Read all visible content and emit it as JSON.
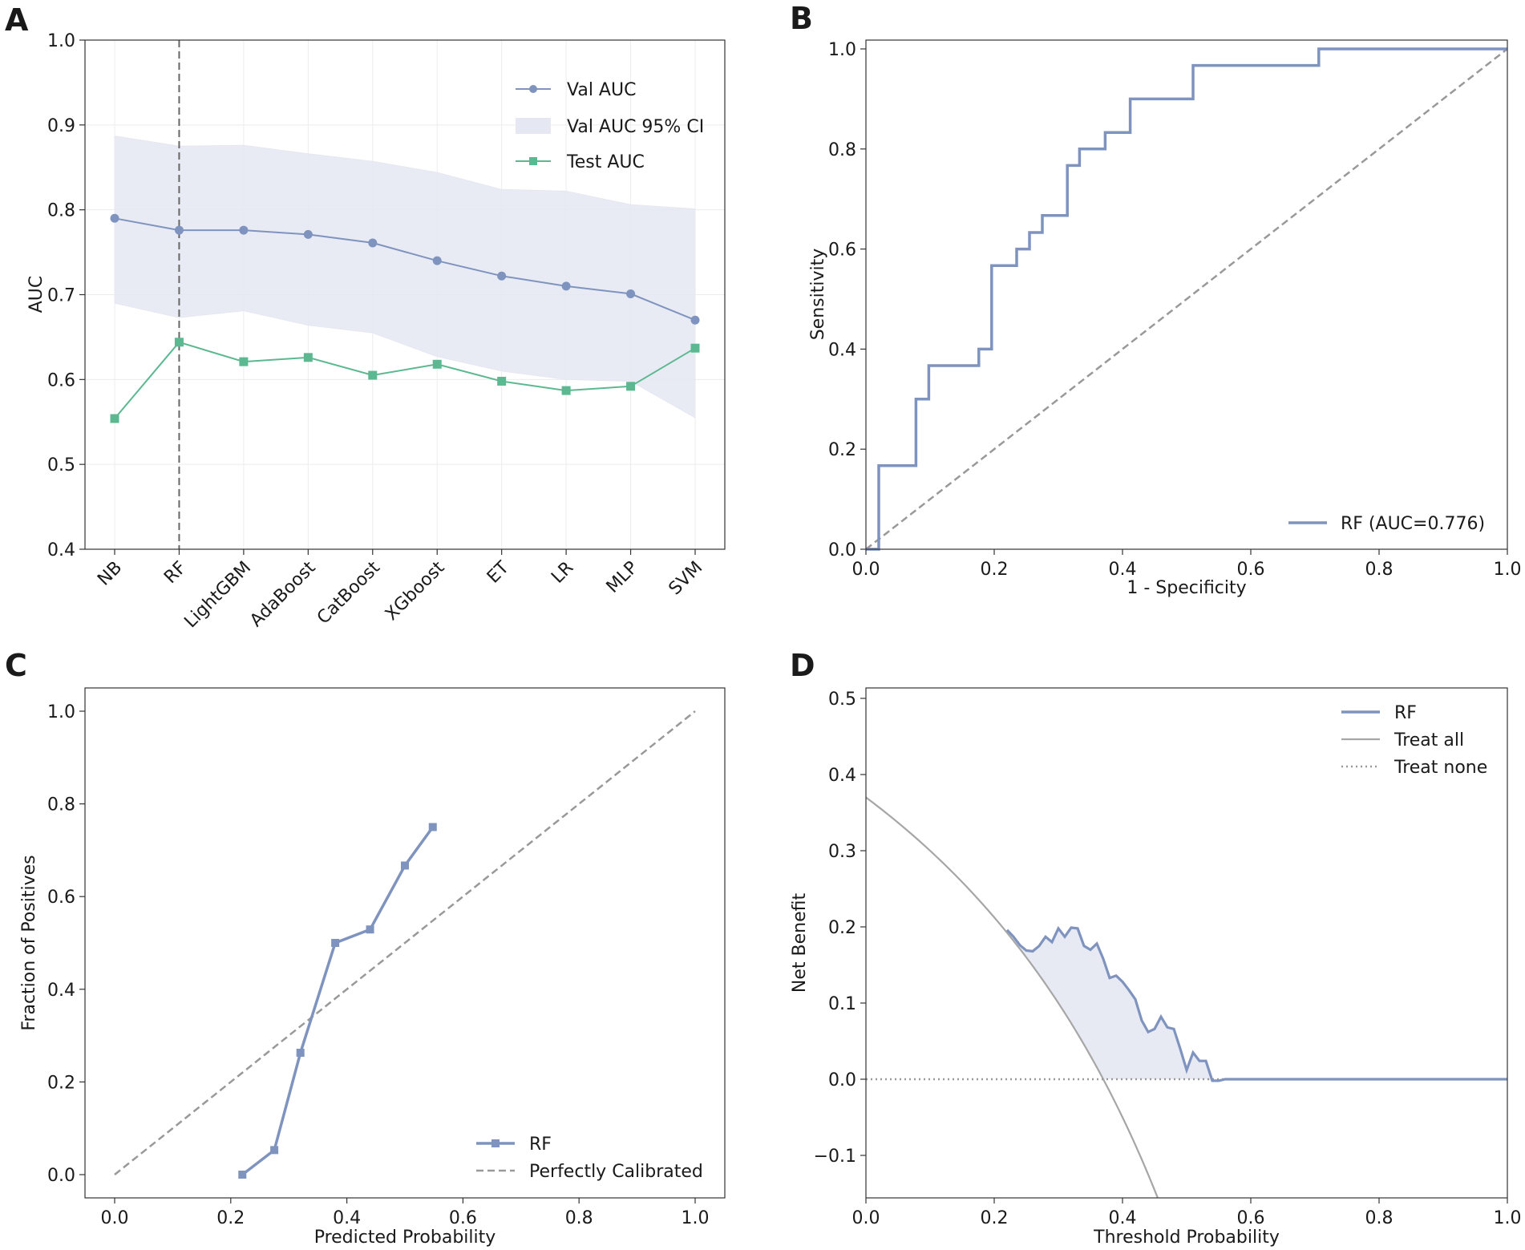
{
  "colors": {
    "rf": "#7f93bf",
    "test": "#5cb890",
    "ci_fill": "#e5e8f2",
    "diag": "#999999",
    "treat_all": "#a6a6a6",
    "treat_none": "#999999",
    "grid": "#ececec",
    "axis": "#333333"
  },
  "chart_data": [
    {
      "panel": "A",
      "type": "line",
      "title": "",
      "xlabel": "",
      "ylabel": "AUC",
      "ylim": [
        0.4,
        1.0
      ],
      "yticks": [
        0.4,
        0.5,
        0.6,
        0.7,
        0.8,
        0.9,
        1.0
      ],
      "grid": true,
      "legend_position": "top-right",
      "categories": [
        "NB",
        "RF",
        "LightGBM",
        "AdaBoost",
        "CatBoost",
        "XGboost",
        "ET",
        "LR",
        "MLP",
        "SVM"
      ],
      "reference_line_category": "RF",
      "series": [
        {
          "name": "Val AUC",
          "marker": "circle",
          "values": [
            0.79,
            0.776,
            0.776,
            0.771,
            0.761,
            0.74,
            0.722,
            0.71,
            0.701,
            0.67
          ]
        },
        {
          "name": "Val AUC 95% CI",
          "kind": "band",
          "lower": [
            0.69,
            0.673,
            0.681,
            0.664,
            0.655,
            0.627,
            0.61,
            0.6,
            0.598,
            0.555
          ],
          "upper": [
            0.887,
            0.875,
            0.876,
            0.866,
            0.857,
            0.844,
            0.824,
            0.822,
            0.806,
            0.801
          ]
        },
        {
          "name": "Test AUC",
          "marker": "square",
          "values": [
            0.554,
            0.644,
            0.621,
            0.626,
            0.605,
            0.618,
            0.598,
            0.587,
            0.592,
            0.637
          ]
        }
      ]
    },
    {
      "panel": "B",
      "type": "line",
      "title": "",
      "xlabel": "1 - Specificity",
      "ylabel": "Sensitivity",
      "xlim": [
        0.0,
        1.0
      ],
      "ylim": [
        0.0,
        1.0
      ],
      "xticks": [
        0.0,
        0.2,
        0.4,
        0.6,
        0.8,
        1.0
      ],
      "yticks": [
        0.0,
        0.2,
        0.4,
        0.6,
        0.8,
        1.0
      ],
      "legend_position": "bottom-right",
      "series": [
        {
          "name": "RF (AUC=0.776)",
          "step": true,
          "x": [
            0.0,
            0.02,
            0.02,
            0.078,
            0.078,
            0.098,
            0.098,
            0.176,
            0.176,
            0.196,
            0.196,
            0.235,
            0.235,
            0.255,
            0.255,
            0.275,
            0.275,
            0.314,
            0.314,
            0.333,
            0.333,
            0.373,
            0.373,
            0.412,
            0.412,
            0.51,
            0.51,
            0.706,
            0.706,
            1.0
          ],
          "y": [
            0.0,
            0.0,
            0.167,
            0.167,
            0.3,
            0.3,
            0.367,
            0.367,
            0.4,
            0.4,
            0.567,
            0.567,
            0.6,
            0.6,
            0.633,
            0.633,
            0.667,
            0.667,
            0.767,
            0.767,
            0.8,
            0.8,
            0.833,
            0.833,
            0.9,
            0.9,
            0.967,
            0.967,
            1.0,
            1.0
          ]
        },
        {
          "name": "chance",
          "kind": "diagonal",
          "x": [
            0.0,
            1.0
          ],
          "y": [
            0.0,
            1.0
          ]
        }
      ]
    },
    {
      "panel": "C",
      "type": "line",
      "title": "",
      "xlabel": "Predicted Probability",
      "ylabel": "Fraction of Positives",
      "xlim": [
        -0.05,
        1.05
      ],
      "ylim": [
        -0.05,
        1.05
      ],
      "xticks": [
        0.0,
        0.2,
        0.4,
        0.6,
        0.8,
        1.0
      ],
      "yticks": [
        0.0,
        0.2,
        0.4,
        0.6,
        0.8,
        1.0
      ],
      "legend_position": "bottom-right",
      "series": [
        {
          "name": "RF",
          "marker": "square",
          "x": [
            0.22,
            0.275,
            0.32,
            0.38,
            0.44,
            0.5,
            0.548
          ],
          "y": [
            0.0,
            0.053,
            0.263,
            0.5,
            0.529,
            0.667,
            0.75
          ]
        },
        {
          "name": "Perfectly Calibrated",
          "dashed": true,
          "x": [
            0.0,
            1.0
          ],
          "y": [
            0.0,
            1.0
          ]
        }
      ]
    },
    {
      "panel": "D",
      "type": "line",
      "title": "",
      "xlabel": "Threshold Probability",
      "ylabel": "Net Benefit",
      "xlim": [
        0.0,
        1.0
      ],
      "ylim": [
        -0.155,
        0.51
      ],
      "xticks": [
        0.0,
        0.2,
        0.4,
        0.6,
        0.8,
        1.0
      ],
      "yticks": [
        -0.1,
        0.0,
        0.1,
        0.2,
        0.3,
        0.4,
        0.5
      ],
      "legend_position": "top-right",
      "prevalence": 0.37,
      "series": [
        {
          "name": "RF",
          "x": [
            0.22,
            0.23,
            0.24,
            0.25,
            0.26,
            0.27,
            0.28,
            0.29,
            0.3,
            0.31,
            0.32,
            0.33,
            0.34,
            0.35,
            0.36,
            0.37,
            0.38,
            0.39,
            0.4,
            0.41,
            0.42,
            0.43,
            0.44,
            0.45,
            0.46,
            0.47,
            0.48,
            0.49,
            0.5,
            0.51,
            0.52,
            0.53,
            0.54,
            0.55,
            0.56,
            1.0
          ],
          "y": [
            0.196,
            0.187,
            0.176,
            0.169,
            0.168,
            0.175,
            0.187,
            0.18,
            0.198,
            0.187,
            0.199,
            0.198,
            0.175,
            0.17,
            0.178,
            0.158,
            0.133,
            0.136,
            0.128,
            0.117,
            0.105,
            0.077,
            0.062,
            0.066,
            0.082,
            0.068,
            0.066,
            0.04,
            0.012,
            0.035,
            0.024,
            0.024,
            -0.002,
            -0.002,
            0.0,
            0.0
          ]
        },
        {
          "name": "Treat all",
          "formula": "prevalence - (1 - prevalence) * t / (1 - t)"
        },
        {
          "name": "Treat none",
          "dotted": true,
          "x": [
            0.0,
            1.0
          ],
          "y": [
            0.0,
            0.0
          ]
        }
      ]
    }
  ],
  "panel_labels": {
    "a": "A",
    "b": "B",
    "c": "C",
    "d": "D"
  },
  "labels": {
    "a_ylabel": "AUC",
    "b_xlabel": "1 - Specificity",
    "b_ylabel": "Sensitivity",
    "c_xlabel": "Predicted Probability",
    "c_ylabel": "Fraction of Positives",
    "d_xlabel": "Threshold Probability",
    "d_ylabel": "Net Benefit"
  },
  "legends": {
    "a_val": "Val AUC",
    "a_ci": "Val AUC 95% CI",
    "a_test": "Test AUC",
    "b_rf": "RF (AUC=0.776)",
    "c_rf": "RF",
    "c_perfect": "Perfectly Calibrated",
    "d_rf": "RF",
    "d_all": "Treat all",
    "d_none": "Treat none"
  }
}
